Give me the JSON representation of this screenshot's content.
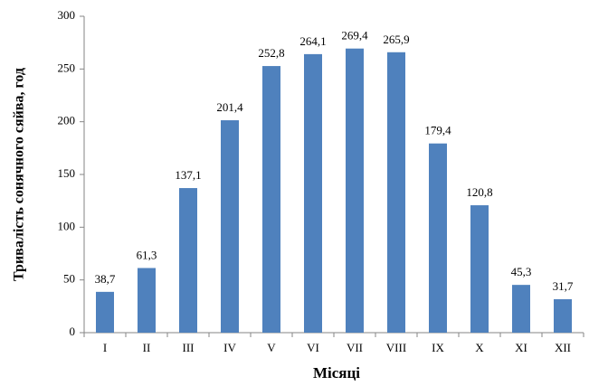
{
  "chart_data": {
    "type": "bar",
    "y_label": "Тривалість сонячного сяйва, год",
    "x_label": "Місяці",
    "categories": [
      "I",
      "II",
      "III",
      "IV",
      "V",
      "VI",
      "VII",
      "VIII",
      "IX",
      "X",
      "XI",
      "XII"
    ],
    "values": [
      38.7,
      61.3,
      137.1,
      201.4,
      252.8,
      264.1,
      269.4,
      265.9,
      179.4,
      120.8,
      45.3,
      31.7
    ],
    "value_labels": [
      "38,7",
      "61,3",
      "137,1",
      "201,4",
      "252,8",
      "264,1",
      "269,4",
      "265,9",
      "179,4",
      "120,8",
      "45,3",
      "31,7"
    ],
    "color": "#4f81bd",
    "ylim": [
      0,
      300
    ],
    "yticks": [
      0,
      50,
      100,
      150,
      200,
      250,
      300
    ],
    "grid": false
  }
}
